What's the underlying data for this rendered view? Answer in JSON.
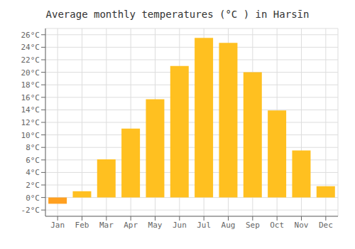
{
  "chart_data": {
    "type": "bar",
    "title": "Average monthly temperatures (°C ) in Harsīn",
    "categories": [
      "Jan",
      "Feb",
      "Mar",
      "Apr",
      "May",
      "Jun",
      "Jul",
      "Aug",
      "Sep",
      "Oct",
      "Nov",
      "Dec"
    ],
    "values": [
      -1.0,
      1.0,
      6.1,
      11.0,
      15.7,
      21.0,
      25.5,
      24.7,
      20.0,
      13.9,
      7.5,
      1.8
    ],
    "colors": [
      "#FFA020",
      "#FFC020",
      "#FFC020",
      "#FFC020",
      "#FFC020",
      "#FFC020",
      "#FFC020",
      "#FFC020",
      "#FFC020",
      "#FFC020",
      "#FFC020",
      "#FFC020"
    ],
    "ylim": [
      -3,
      27
    ],
    "yticks": [
      {
        "value": -2,
        "label": "-2°C"
      },
      {
        "value": 0,
        "label": "0°C"
      },
      {
        "value": 2,
        "label": "2°C"
      },
      {
        "value": 4,
        "label": "4°C"
      },
      {
        "value": 6,
        "label": "6°C"
      },
      {
        "value": 8,
        "label": "8°C"
      },
      {
        "value": 10,
        "label": "10°C"
      },
      {
        "value": 12,
        "label": "12°C"
      },
      {
        "value": 14,
        "label": "14°C"
      },
      {
        "value": 16,
        "label": "16°C"
      },
      {
        "value": 18,
        "label": "18°C"
      },
      {
        "value": 20,
        "label": "20°C"
      },
      {
        "value": 22,
        "label": "22°C"
      },
      {
        "value": 24,
        "label": "24°C"
      },
      {
        "value": 26,
        "label": "26°C"
      }
    ],
    "grid": true
  }
}
